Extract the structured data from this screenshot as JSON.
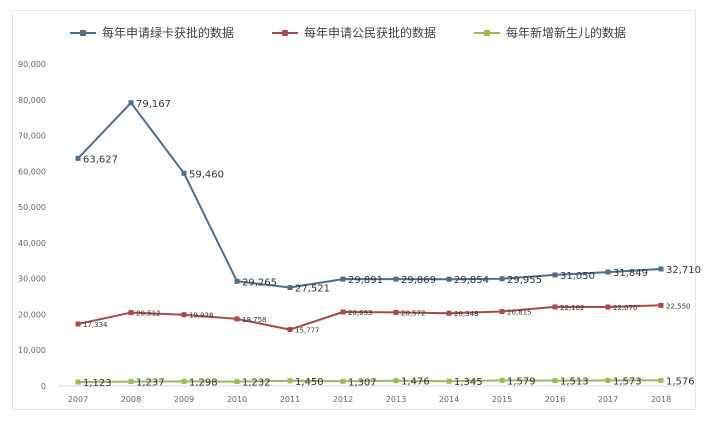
{
  "chart_data": {
    "type": "line",
    "title": "",
    "xlabel": "",
    "ylabel": "",
    "x": [
      "2007",
      "2008",
      "2009",
      "2010",
      "2011",
      "2012",
      "2013",
      "2014",
      "2015",
      "2016",
      "2017",
      "2018"
    ],
    "ylim": [
      0,
      90000
    ],
    "yticks": [
      0,
      10000,
      20000,
      30000,
      40000,
      50000,
      60000,
      70000,
      80000,
      90000
    ],
    "ytick_labels": [
      "0",
      "10,000",
      "20,000",
      "30,000",
      "40,000",
      "50,000",
      "60,000",
      "70,000",
      "80,000",
      "90,000"
    ],
    "grid": false,
    "legend_position": "top",
    "series": [
      {
        "name": "每年申请绿卡获批的数据",
        "color": "#4f6d8f",
        "values": [
          63627,
          79167,
          59460,
          29265,
          27521,
          29891,
          29869,
          29854,
          29955,
          31050,
          31849,
          32710
        ],
        "labels": [
          "63,627",
          "79,167",
          "59,460",
          "29,265",
          "27,521",
          "29,891",
          "29,869",
          "29,854",
          "29,955",
          "31,050",
          "31,849",
          "32,710"
        ]
      },
      {
        "name": "每年申请公民获批的数据",
        "color": "#a94a4a",
        "values": [
          17334,
          20512,
          19928,
          18758,
          15777,
          20693,
          20572,
          20348,
          20815,
          22102,
          22070,
          22550
        ],
        "labels": [
          "17,334",
          "20,512",
          "19,928",
          "18,758",
          "15,777",
          "20,693",
          "20,572",
          "20,348",
          "20,815",
          "22,102",
          "22,070",
          "22,550"
        ]
      },
      {
        "name": "每年新增新生儿的数据",
        "color": "#9bbb59",
        "values": [
          1123,
          1237,
          1298,
          1232,
          1450,
          1307,
          1476,
          1345,
          1579,
          1513,
          1573,
          1576
        ],
        "labels": [
          "1,123",
          "1,237",
          "1,298",
          "1,232",
          "1,450",
          "1,307",
          "1,476",
          "1,345",
          "1,579",
          "1,513",
          "1,573",
          "1,576"
        ]
      }
    ]
  }
}
